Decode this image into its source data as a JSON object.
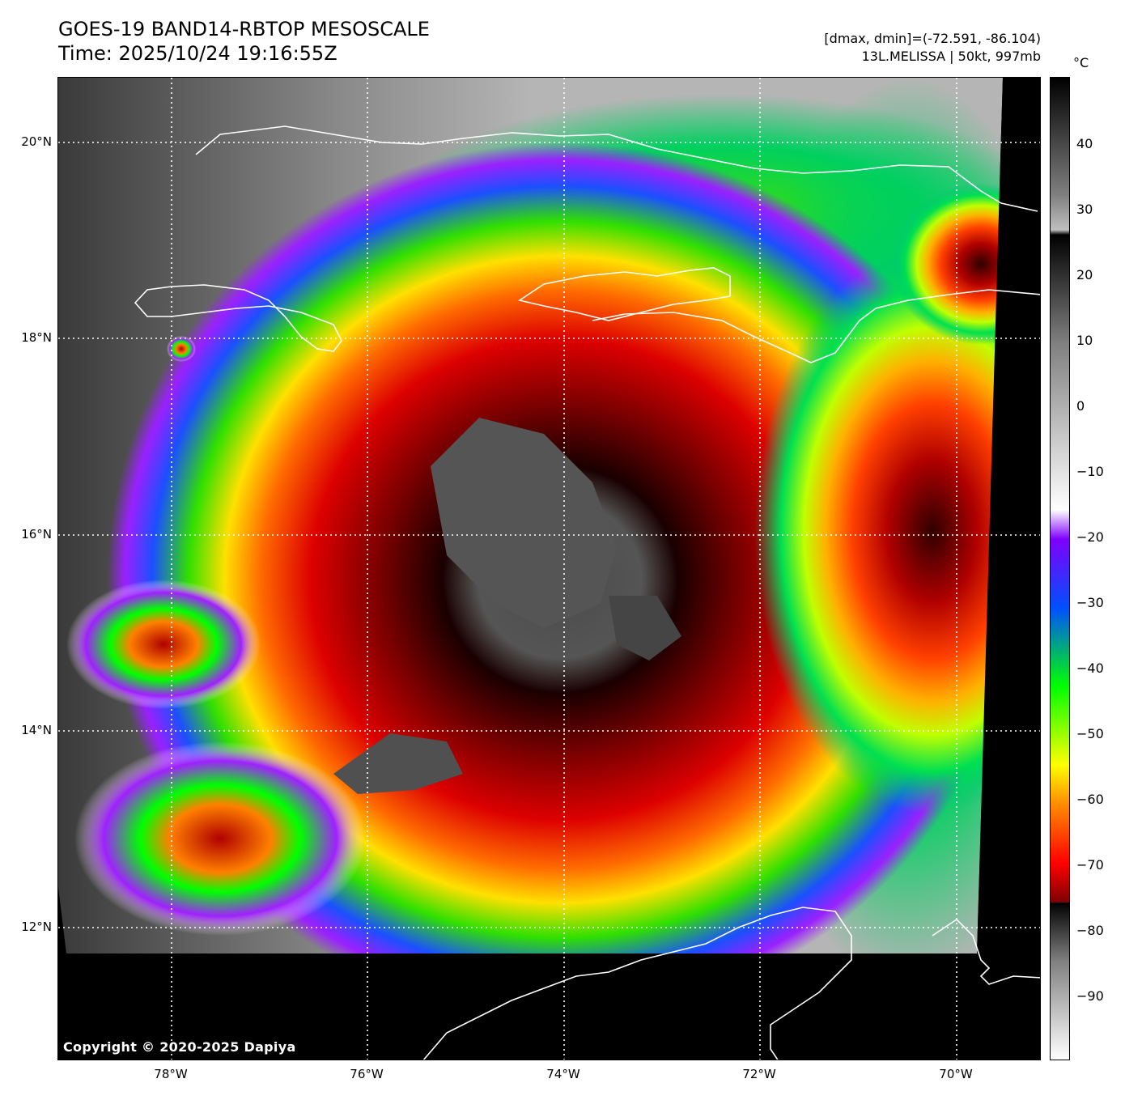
{
  "header": {
    "title": "GOES-19 BAND14-RBTOP MESOSCALE",
    "time": "Time: 2025/10/24 19:16:55Z",
    "range_text": "[dmax, dmin]=(-72.591, -86.104)",
    "storm_text": "13L.MELISSA | 50kt, 997mb"
  },
  "map": {
    "copyright": "Copyright © 2020-2025 Dapiya",
    "lat_labels": [
      "20°N",
      "18°N",
      "16°N",
      "14°N",
      "12°N"
    ],
    "lon_labels": [
      "78°W",
      "76°W",
      "74°W",
      "72°W",
      "70°W"
    ],
    "coastline_color": "#ffffff",
    "grid_style": "dotted white",
    "no_data_color": "#000000"
  },
  "colorbar": {
    "unit": "°C",
    "ticks": [
      "40",
      "30",
      "20",
      "10",
      "0",
      "−10",
      "−20",
      "−30",
      "−40",
      "−50",
      "−60",
      "−70",
      "−80",
      "−90"
    ],
    "palette": [
      "#ffffff",
      "#bfbfbf",
      "#000000",
      "#7d0000",
      "#ff0000",
      "#ff8c00",
      "#ffff00",
      "#00ff00",
      "#0050ff",
      "#7f00ff",
      "#ffffff",
      "#808080",
      "#000000"
    ]
  }
}
